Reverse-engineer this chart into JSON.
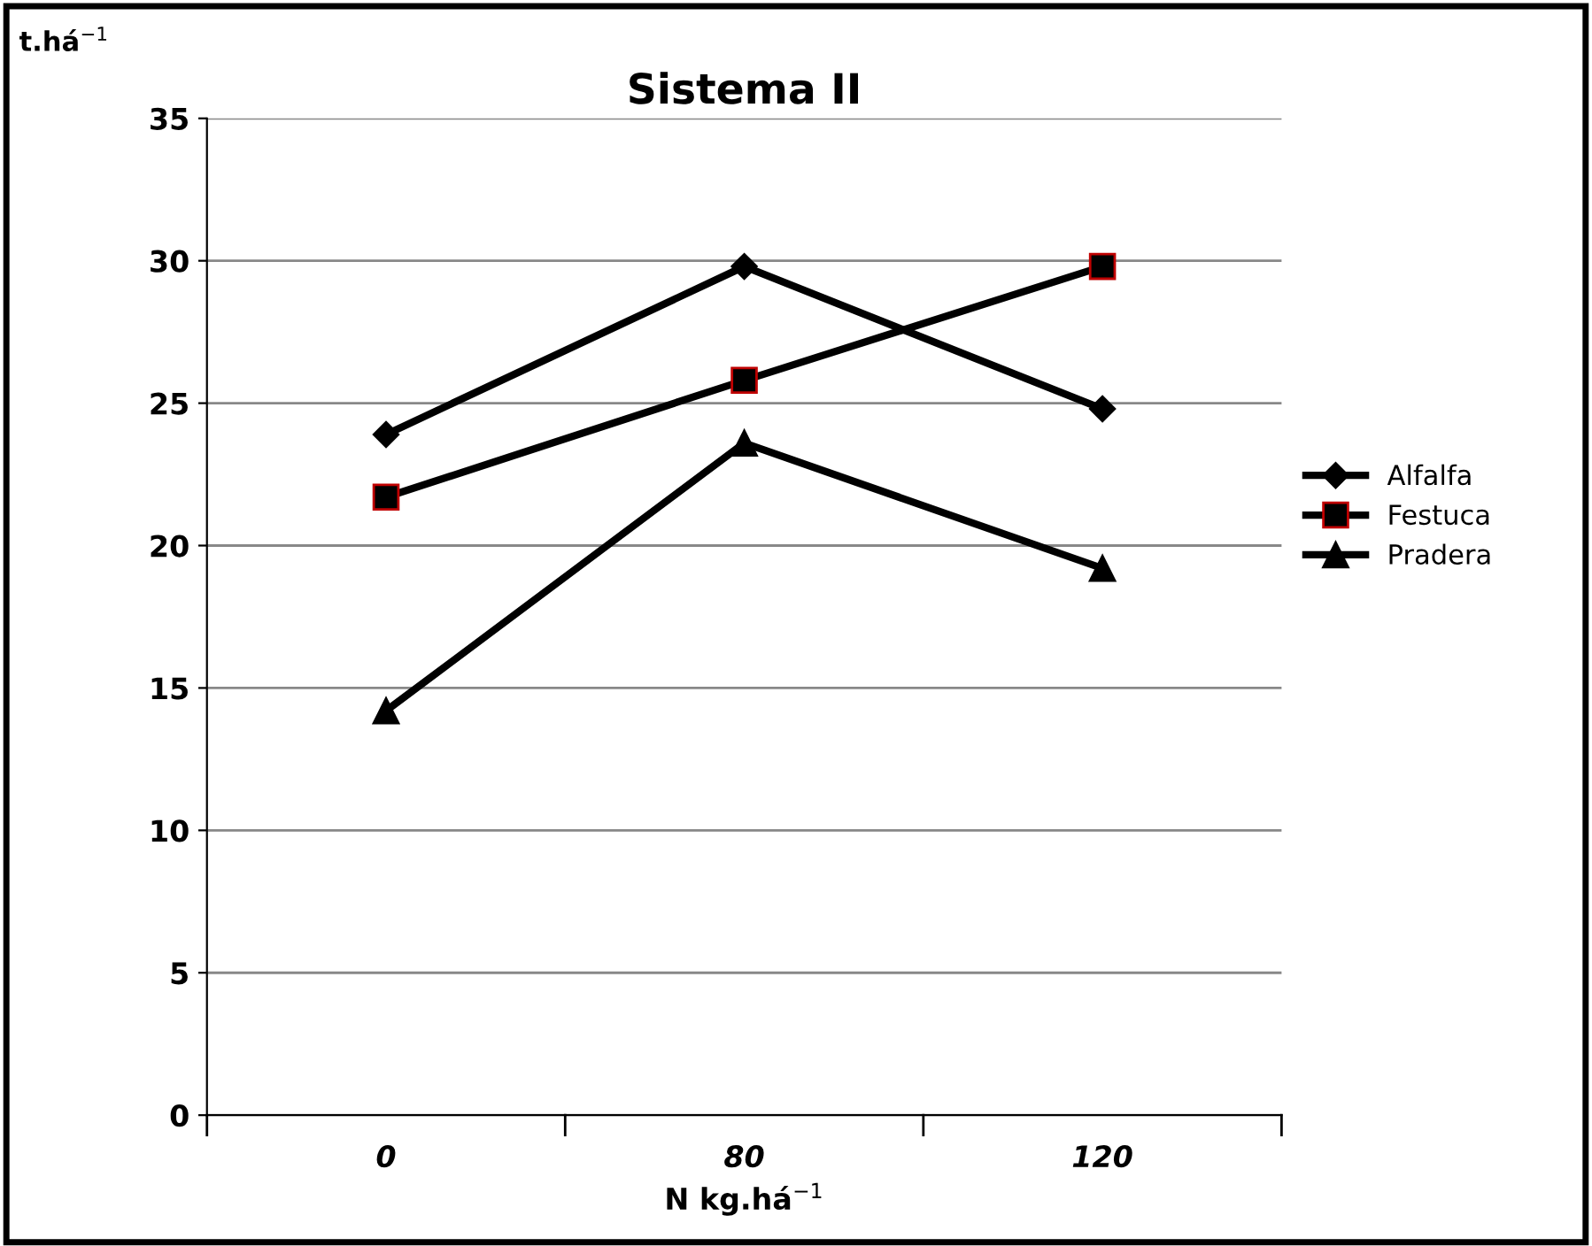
{
  "chart_data": {
    "type": "line",
    "title": "Sistema II",
    "xlabel": "N kg.há$^{−1}$",
    "ylabel": "t.há$^{−1}$",
    "categories": [
      "0",
      "80",
      "120"
    ],
    "series": [
      {
        "name": "Alfalfa",
        "color": "#000000",
        "marker": "diamond",
        "values": [
          23.9,
          29.8,
          24.8
        ]
      },
      {
        "name": "Festuca",
        "color": "#000000",
        "marker": "square",
        "values": [
          21.7,
          25.8,
          29.8
        ]
      },
      {
        "name": "Pradera",
        "color": "#000000",
        "marker": "triangle",
        "values": [
          14.2,
          23.6,
          19.2
        ]
      }
    ],
    "ylim": [
      0,
      35
    ],
    "yticks": [
      0,
      5,
      10,
      15,
      20,
      25,
      30,
      35
    ],
    "grid": "y",
    "legend": "right",
    "line_style": "solid"
  }
}
